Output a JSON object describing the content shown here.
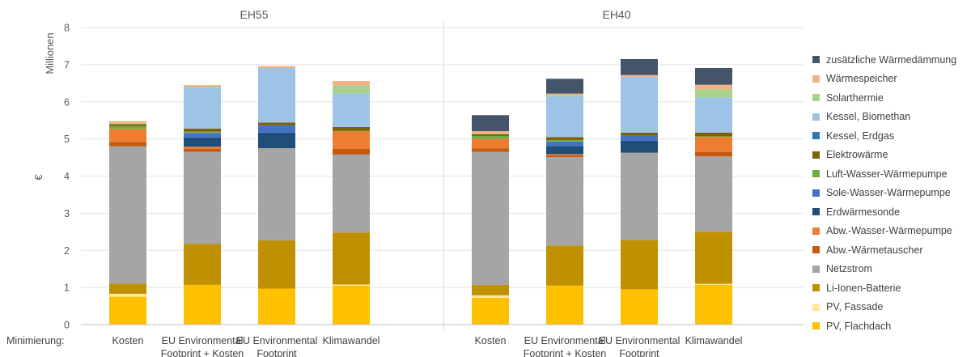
{
  "chart_data": {
    "type": "bar",
    "stacked": true,
    "ylabel": "€",
    "ylabel_scale": "Millionen",
    "xaxis_prefix": "Minimierung:",
    "ylim": [
      0,
      8
    ],
    "yticks": [
      0,
      1,
      2,
      3,
      4,
      5,
      6,
      7,
      8
    ],
    "grid": true,
    "legend_position": "right",
    "panels": [
      {
        "title": "EH55",
        "categories": [
          {
            "line1": "Kosten",
            "line2": ""
          },
          {
            "line1": "EU Environmental",
            "line2": "Footprint + Kosten"
          },
          {
            "line1": "EU Environmental",
            "line2": "Footprint"
          },
          {
            "line1": "Klimawandel",
            "line2": ""
          }
        ]
      },
      {
        "title": "EH40",
        "categories": [
          {
            "line1": "Kosten",
            "line2": ""
          },
          {
            "line1": "EU Environmental",
            "line2": "Footprint + Kosten"
          },
          {
            "line1": "EU Environmental",
            "line2": "Footprint"
          },
          {
            "line1": "Klimawandel",
            "line2": ""
          }
        ]
      }
    ],
    "series": [
      {
        "name": "PV, Flachdach",
        "color": "#FFC000",
        "values": [
          0.75,
          1.07,
          0.97,
          1.05,
          0.72,
          1.05,
          0.95,
          1.07
        ]
      },
      {
        "name": "PV, Fassade",
        "color": "#FFE699",
        "values": [
          0.08,
          0.0,
          0.0,
          0.03,
          0.07,
          0.0,
          0.0,
          0.03
        ]
      },
      {
        "name": "Li-Ionen-Batterie",
        "color": "#BF9000",
        "values": [
          0.27,
          1.1,
          1.3,
          1.4,
          0.28,
          1.08,
          1.33,
          1.4
        ]
      },
      {
        "name": "Netzstrom",
        "color": "#A5A5A5",
        "values": [
          3.7,
          2.48,
          2.48,
          2.1,
          3.58,
          2.38,
          2.35,
          2.03
        ]
      },
      {
        "name": "Abw.-Wärmetauscher",
        "color": "#C55A11",
        "values": [
          0.12,
          0.08,
          0.0,
          0.15,
          0.1,
          0.05,
          0.0,
          0.12
        ]
      },
      {
        "name": "Abw.-Wasser-Wärmepumpe",
        "color": "#ED7D31",
        "values": [
          0.35,
          0.06,
          0.0,
          0.47,
          0.25,
          0.03,
          0.0,
          0.4
        ]
      },
      {
        "name": "Erdwärmesonde",
        "color": "#1F4E79",
        "values": [
          0.0,
          0.25,
          0.42,
          0.0,
          0.0,
          0.22,
          0.32,
          0.0
        ]
      },
      {
        "name": "Sole-Wasser-Wärmepumpe",
        "color": "#4472C4",
        "values": [
          0.0,
          0.12,
          0.2,
          0.0,
          0.0,
          0.12,
          0.15,
          0.0
        ]
      },
      {
        "name": "Luft-Wasser-Wärmepumpe",
        "color": "#70AD47",
        "values": [
          0.08,
          0.04,
          0.0,
          0.02,
          0.08,
          0.04,
          0.0,
          0.02
        ]
      },
      {
        "name": "Elektrowärme",
        "color": "#806000",
        "values": [
          0.05,
          0.08,
          0.07,
          0.1,
          0.05,
          0.08,
          0.07,
          0.1
        ]
      },
      {
        "name": "Kessel, Erdgas",
        "color": "#2E75B6",
        "values": [
          0.0,
          0.0,
          0.0,
          0.0,
          0.0,
          0.0,
          0.0,
          0.0
        ]
      },
      {
        "name": "Kessel, Biomethan",
        "color": "#9DC3E6",
        "values": [
          0.0,
          1.1,
          1.47,
          0.9,
          0.0,
          1.1,
          1.5,
          0.95
        ]
      },
      {
        "name": "Solarthermie",
        "color": "#A9D18E",
        "values": [
          0.02,
          0.03,
          0.0,
          0.22,
          0.02,
          0.03,
          0.0,
          0.22
        ]
      },
      {
        "name": "Wärmespeicher",
        "color": "#F4B183",
        "values": [
          0.06,
          0.04,
          0.05,
          0.12,
          0.06,
          0.04,
          0.05,
          0.12
        ]
      },
      {
        "name": "zusätzliche Wärmedämmung",
        "color": "#44546A",
        "values": [
          0.0,
          0.0,
          0.0,
          0.0,
          0.43,
          0.4,
          0.43,
          0.45
        ]
      }
    ]
  }
}
